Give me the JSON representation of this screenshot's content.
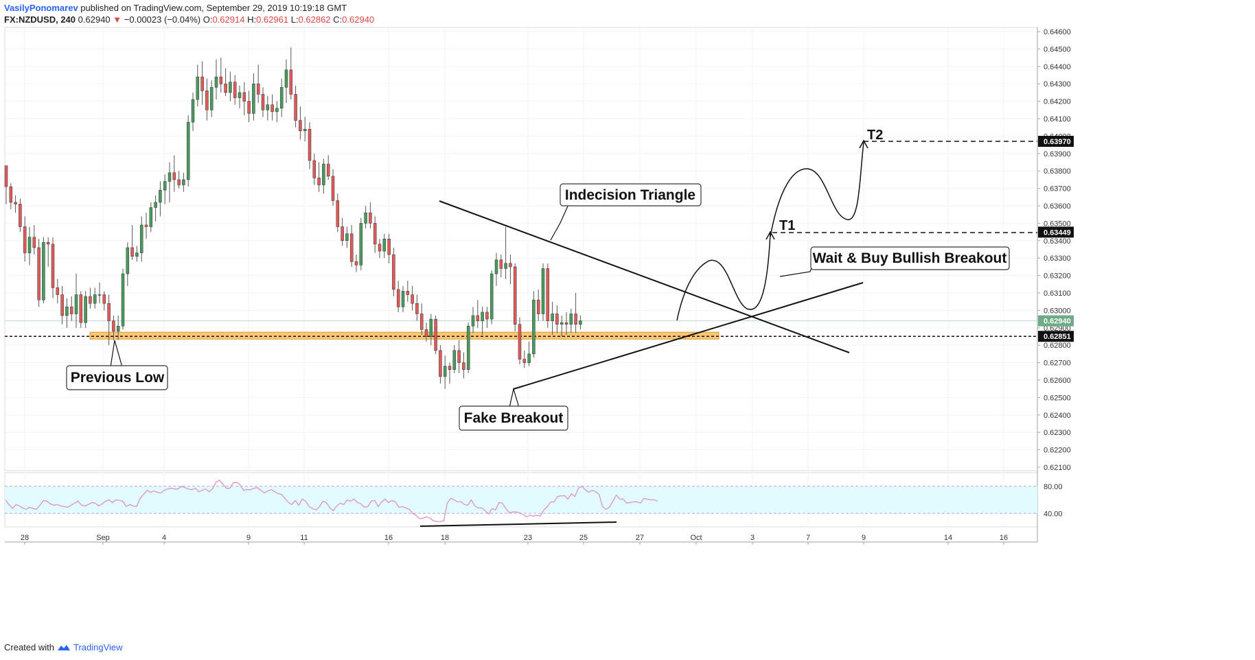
{
  "header": {
    "author": "VasilyPonomarev",
    "published": "published on TradingView.com, September 29, 2019 10:19:18 GMT",
    "symbol": "FX:NZDUSD, 240",
    "last": "0.62940",
    "change_arrow": "▼",
    "change": "−0.00023 (−0.04%)",
    "o_label": "O:",
    "o": "0.62914",
    "h_label": "H:",
    "h": "0.62961",
    "l_label": "L:",
    "l": "0.62862",
    "c_label": "C:",
    "c": "0.62940"
  },
  "footer": {
    "created": "Created with",
    "brand": "TradingView",
    "logo_icon": "tradingview-logo-icon"
  },
  "chart_data": [
    {
      "type": "candlestick",
      "symbol": "FX:NZDUSD",
      "timeframe": "240",
      "ylim": [
        0.6205,
        0.6467
      ],
      "y_ticks": [
        "0.64600",
        "0.64500",
        "0.64400",
        "0.64300",
        "0.64200",
        "0.64100",
        "0.64000",
        "0.63900",
        "0.63800",
        "0.63700",
        "0.63600",
        "0.63500",
        "0.63400",
        "0.63300",
        "0.63200",
        "0.63100",
        "0.63000",
        "0.62900",
        "0.62800",
        "0.62700",
        "0.62600",
        "0.62500",
        "0.62400",
        "0.62300",
        "0.62200",
        "0.62100"
      ],
      "x_ticks": [
        "28",
        "Sep",
        "4",
        "9",
        "11",
        "16",
        "18",
        "23",
        "25",
        "27",
        "Oct",
        "3",
        "7",
        "9",
        "14",
        "16"
      ],
      "price_labels": [
        {
          "value": 0.6397,
          "text": "0.63970",
          "color": "#111111"
        },
        {
          "value": 0.63449,
          "text": "0.63449",
          "color": "#111111"
        },
        {
          "value": 0.6294,
          "text": "0.62940",
          "color": "#6cab84"
        },
        {
          "value": 0.62851,
          "text": "0.62851",
          "color": "#111111"
        }
      ],
      "support_zone": {
        "low": 0.62835,
        "high": 0.62875,
        "color": "#f7b955"
      },
      "support_line": 0.62851,
      "colors": {
        "up": "#4a9a5e",
        "down": "#e05a5a",
        "zone": "#f7b955",
        "grid": "#f1f3f6"
      },
      "ohlc": [
        [
          0.6383,
          0.6383,
          0.6361,
          0.6371
        ],
        [
          0.6371,
          0.6373,
          0.6358,
          0.6362
        ],
        [
          0.6362,
          0.6366,
          0.6356,
          0.6361
        ],
        [
          0.6361,
          0.6364,
          0.6345,
          0.6348
        ],
        [
          0.6348,
          0.6354,
          0.6328,
          0.6333
        ],
        [
          0.6333,
          0.6348,
          0.6326,
          0.6342
        ],
        [
          0.6342,
          0.6349,
          0.6332,
          0.6336
        ],
        [
          0.6336,
          0.6341,
          0.6302,
          0.6306
        ],
        [
          0.6306,
          0.6342,
          0.6304,
          0.6339
        ],
        [
          0.6339,
          0.6342,
          0.6325,
          0.6338
        ],
        [
          0.6338,
          0.6342,
          0.6307,
          0.6313
        ],
        [
          0.6313,
          0.6318,
          0.6304,
          0.6309
        ],
        [
          0.6309,
          0.6314,
          0.6292,
          0.6297
        ],
        [
          0.6297,
          0.6307,
          0.629,
          0.6302
        ],
        [
          0.6302,
          0.6308,
          0.6294,
          0.6298
        ],
        [
          0.6298,
          0.6321,
          0.629,
          0.6309
        ],
        [
          0.6309,
          0.6311,
          0.629,
          0.6293
        ],
        [
          0.6293,
          0.6311,
          0.629,
          0.6308
        ],
        [
          0.6308,
          0.6313,
          0.6301,
          0.6304
        ],
        [
          0.6304,
          0.6313,
          0.6301,
          0.6309
        ],
        [
          0.6309,
          0.6316,
          0.6304,
          0.6309
        ],
        [
          0.6309,
          0.6311,
          0.63,
          0.6304
        ],
        [
          0.6304,
          0.6309,
          0.628,
          0.6294
        ],
        [
          0.6294,
          0.6297,
          0.6283,
          0.6288
        ],
        [
          0.6288,
          0.6297,
          0.6283,
          0.6291
        ],
        [
          0.6291,
          0.6324,
          0.6289,
          0.6321
        ],
        [
          0.6321,
          0.6339,
          0.6314,
          0.6336
        ],
        [
          0.6336,
          0.6349,
          0.6329,
          0.6331
        ],
        [
          0.6331,
          0.6337,
          0.6328,
          0.6333
        ],
        [
          0.6333,
          0.6354,
          0.6328,
          0.6349
        ],
        [
          0.6349,
          0.6356,
          0.6341,
          0.6348
        ],
        [
          0.6348,
          0.6362,
          0.6345,
          0.6359
        ],
        [
          0.6359,
          0.6366,
          0.6351,
          0.6362
        ],
        [
          0.6362,
          0.6374,
          0.6354,
          0.6369
        ],
        [
          0.6369,
          0.6378,
          0.6361,
          0.6374
        ],
        [
          0.6374,
          0.6385,
          0.6362,
          0.6379
        ],
        [
          0.6379,
          0.6389,
          0.6368,
          0.6375
        ],
        [
          0.6375,
          0.638,
          0.637,
          0.6372
        ],
        [
          0.6372,
          0.6379,
          0.6368,
          0.6375
        ],
        [
          0.6375,
          0.6412,
          0.6371,
          0.6408
        ],
        [
          0.6408,
          0.6425,
          0.6403,
          0.6421
        ],
        [
          0.6421,
          0.6441,
          0.6417,
          0.6434
        ],
        [
          0.6434,
          0.6443,
          0.6418,
          0.6426
        ],
        [
          0.6426,
          0.6433,
          0.6409,
          0.6415
        ],
        [
          0.6415,
          0.6432,
          0.6411,
          0.6428
        ],
        [
          0.6428,
          0.6444,
          0.6421,
          0.6434
        ],
        [
          0.6434,
          0.6445,
          0.6425,
          0.643
        ],
        [
          0.643,
          0.6439,
          0.6423,
          0.6425
        ],
        [
          0.6425,
          0.6437,
          0.642,
          0.6431
        ],
        [
          0.6431,
          0.6435,
          0.6418,
          0.6422
        ],
        [
          0.6422,
          0.6429,
          0.6416,
          0.6425
        ],
        [
          0.6425,
          0.6431,
          0.6412,
          0.642
        ],
        [
          0.642,
          0.6426,
          0.6408,
          0.6413
        ],
        [
          0.6413,
          0.6436,
          0.6409,
          0.643
        ],
        [
          0.643,
          0.6441,
          0.6419,
          0.6424
        ],
        [
          0.6424,
          0.6428,
          0.6411,
          0.6415
        ],
        [
          0.6415,
          0.6423,
          0.6409,
          0.6418
        ],
        [
          0.6418,
          0.6424,
          0.6409,
          0.6414
        ],
        [
          0.6414,
          0.642,
          0.6408,
          0.6416
        ],
        [
          0.6416,
          0.6433,
          0.6411,
          0.6428
        ],
        [
          0.6428,
          0.6444,
          0.6419,
          0.6438
        ],
        [
          0.6438,
          0.6451,
          0.6421,
          0.6424
        ],
        [
          0.6424,
          0.6429,
          0.6405,
          0.6409
        ],
        [
          0.6409,
          0.6417,
          0.6398,
          0.6403
        ],
        [
          0.6403,
          0.6411,
          0.6397,
          0.6404
        ],
        [
          0.6404,
          0.6408,
          0.6381,
          0.6386
        ],
        [
          0.6386,
          0.639,
          0.6372,
          0.6376
        ],
        [
          0.6376,
          0.6385,
          0.6368,
          0.6372
        ],
        [
          0.6372,
          0.6387,
          0.6367,
          0.6384
        ],
        [
          0.6384,
          0.6389,
          0.6375,
          0.6377
        ],
        [
          0.6377,
          0.6381,
          0.636,
          0.6363
        ],
        [
          0.6363,
          0.6367,
          0.6345,
          0.6348
        ],
        [
          0.6348,
          0.6353,
          0.6337,
          0.634
        ],
        [
          0.634,
          0.6348,
          0.6336,
          0.6344
        ],
        [
          0.6344,
          0.6349,
          0.6325,
          0.6328
        ],
        [
          0.6328,
          0.6332,
          0.6322,
          0.6326
        ],
        [
          0.6326,
          0.6353,
          0.6323,
          0.635
        ],
        [
          0.635,
          0.636,
          0.6347,
          0.6356
        ],
        [
          0.6356,
          0.6362,
          0.6347,
          0.635
        ],
        [
          0.635,
          0.6354,
          0.6333,
          0.6338
        ],
        [
          0.6338,
          0.6341,
          0.633,
          0.6334
        ],
        [
          0.6334,
          0.6344,
          0.633,
          0.6341
        ],
        [
          0.6341,
          0.6344,
          0.6327,
          0.6332
        ],
        [
          0.6332,
          0.6336,
          0.6308,
          0.6312
        ],
        [
          0.6312,
          0.6317,
          0.6299,
          0.6302
        ],
        [
          0.6302,
          0.6314,
          0.6299,
          0.6311
        ],
        [
          0.6311,
          0.6317,
          0.6305,
          0.6309
        ],
        [
          0.6309,
          0.6314,
          0.63,
          0.6304
        ],
        [
          0.6304,
          0.6309,
          0.6294,
          0.6298
        ],
        [
          0.6298,
          0.6304,
          0.6286,
          0.6289
        ],
        [
          0.6289,
          0.6293,
          0.6282,
          0.6285
        ],
        [
          0.6285,
          0.6298,
          0.628,
          0.6295
        ],
        [
          0.6295,
          0.6297,
          0.6275,
          0.6277
        ],
        [
          0.6277,
          0.628,
          0.6258,
          0.6262
        ],
        [
          0.6262,
          0.6274,
          0.6255,
          0.6268
        ],
        [
          0.6268,
          0.627,
          0.6258,
          0.6266
        ],
        [
          0.6266,
          0.628,
          0.6264,
          0.6277
        ],
        [
          0.6277,
          0.6283,
          0.6264,
          0.627
        ],
        [
          0.627,
          0.6276,
          0.6261,
          0.6266
        ],
        [
          0.6266,
          0.6293,
          0.6264,
          0.6291
        ],
        [
          0.6291,
          0.6302,
          0.6287,
          0.6297
        ],
        [
          0.6297,
          0.6306,
          0.629,
          0.6294
        ],
        [
          0.6294,
          0.6302,
          0.6286,
          0.6299
        ],
        [
          0.6299,
          0.6302,
          0.629,
          0.6295
        ],
        [
          0.6295,
          0.6323,
          0.6292,
          0.6321
        ],
        [
          0.6321,
          0.6333,
          0.6314,
          0.6329
        ],
        [
          0.6329,
          0.6332,
          0.6319,
          0.6324
        ],
        [
          0.6324,
          0.6348,
          0.6318,
          0.6327
        ],
        [
          0.6327,
          0.6332,
          0.6315,
          0.6325
        ],
        [
          0.6325,
          0.6327,
          0.6288,
          0.6292
        ],
        [
          0.6292,
          0.6296,
          0.6269,
          0.6272
        ],
        [
          0.6272,
          0.6277,
          0.6267,
          0.627
        ],
        [
          0.627,
          0.6282,
          0.6268,
          0.6275
        ],
        [
          0.6275,
          0.6311,
          0.6273,
          0.6306
        ],
        [
          0.6306,
          0.6312,
          0.6294,
          0.6298
        ],
        [
          0.6298,
          0.6327,
          0.6294,
          0.6324
        ],
        [
          0.6324,
          0.6327,
          0.629,
          0.6294
        ],
        [
          0.6294,
          0.6305,
          0.6286,
          0.6298
        ],
        [
          0.6298,
          0.6303,
          0.6287,
          0.6292
        ],
        [
          0.6292,
          0.6297,
          0.6285,
          0.6293
        ],
        [
          0.6293,
          0.6299,
          0.6286,
          0.6292
        ],
        [
          0.6292,
          0.6301,
          0.6287,
          0.6298
        ],
        [
          0.6298,
          0.631,
          0.6287,
          0.6292
        ],
        [
          0.6292,
          0.6297,
          0.6289,
          0.6294
        ]
      ],
      "projections": [
        {
          "name": "T1",
          "value": 0.63449
        },
        {
          "name": "T2",
          "value": 0.6397
        }
      ],
      "annotations": [
        "Indecision Triangle",
        "Wait & Buy Bullish Breakout",
        "Previous Low",
        "Fake Breakout",
        "T1",
        "T2"
      ]
    },
    {
      "type": "line",
      "panel": "oscillator",
      "ylim": [
        20,
        100
      ],
      "levels": [
        80,
        40
      ],
      "y_ticks": [
        "80.00",
        "40.00"
      ],
      "band_color": "#e2fbfe",
      "line_color": "#e091c0",
      "values": [
        60,
        53,
        47,
        53,
        51,
        48,
        46,
        49,
        47,
        46,
        52,
        59,
        58,
        54,
        52,
        53,
        51,
        50,
        49,
        52,
        55,
        58,
        52,
        51,
        53,
        56,
        55,
        51,
        54,
        58,
        60,
        56,
        60,
        59,
        58,
        50,
        53,
        51,
        50,
        62,
        68,
        74,
        71,
        73,
        71,
        70,
        74,
        76,
        77,
        76,
        76,
        80,
        78,
        76,
        75,
        77,
        72,
        74,
        76,
        72,
        76,
        86,
        89,
        83,
        77,
        77,
        85,
        86,
        82,
        74,
        75,
        75,
        77,
        78,
        74,
        70,
        73,
        75,
        72,
        69,
        68,
        62,
        56,
        53,
        59,
        52,
        61,
        58,
        50,
        47,
        45,
        50,
        58,
        56,
        48,
        44,
        51,
        55,
        53,
        60,
        58,
        61,
        56,
        54,
        49,
        50,
        58,
        59,
        50,
        57,
        61,
        56,
        59,
        57,
        49,
        50,
        48,
        46,
        40,
        37,
        32,
        33,
        35,
        33,
        29,
        28,
        28,
        29,
        55,
        62,
        60,
        57,
        57,
        53,
        52,
        60,
        51,
        48,
        48,
        44,
        39,
        47,
        45,
        56,
        55,
        47,
        41,
        42,
        42,
        41,
        38,
        35,
        37,
        36,
        37,
        36,
        45,
        50,
        57,
        57,
        65,
        66,
        66,
        61,
        69,
        65,
        77,
        80,
        75,
        71,
        74,
        72,
        68,
        50,
        46,
        49,
        58,
        67,
        61,
        61,
        55,
        56,
        57,
        57,
        55,
        62,
        61,
        60,
        60,
        58
      ],
      "divergence_line": {
        "from": 31,
        "to": 33
      }
    }
  ]
}
